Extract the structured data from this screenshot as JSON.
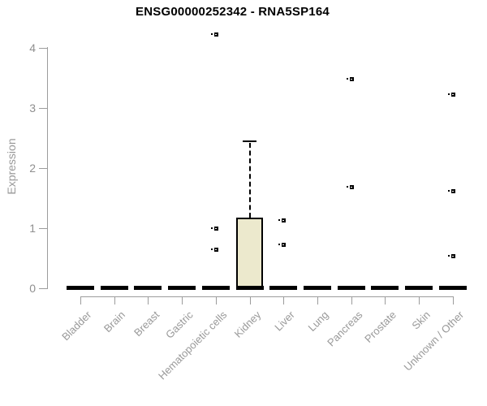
{
  "chart_data": {
    "type": "boxplot",
    "title": "ENSG00000252342 - RNA5SP164",
    "ylabel": "Expression",
    "xlabel": "",
    "ylim": [
      0,
      4
    ],
    "yticks": [
      0,
      1,
      2,
      3,
      4
    ],
    "grid": false,
    "legend": false,
    "categories": [
      "Bladder",
      "Brain",
      "Breast",
      "Gastric",
      "Hematopoietic cells",
      "Kidney",
      "Liver",
      "Lung",
      "Pancreas",
      "Prostate",
      "Skin",
      "Unknown / Other"
    ],
    "boxes": [
      {
        "category": "Bladder",
        "median": 0,
        "q1": 0,
        "q3": 0,
        "whisker_low": 0,
        "whisker_high": 0,
        "outliers": []
      },
      {
        "category": "Brain",
        "median": 0,
        "q1": 0,
        "q3": 0,
        "whisker_low": 0,
        "whisker_high": 0,
        "outliers": []
      },
      {
        "category": "Breast",
        "median": 0,
        "q1": 0,
        "q3": 0,
        "whisker_low": 0,
        "whisker_high": 0,
        "outliers": []
      },
      {
        "category": "Gastric",
        "median": 0,
        "q1": 0,
        "q3": 0,
        "whisker_low": 0,
        "whisker_high": 0,
        "outliers": []
      },
      {
        "category": "Hematopoietic cells",
        "median": 0,
        "q1": 0,
        "q3": 0,
        "whisker_low": 0,
        "whisker_high": 0,
        "outliers": [
          4.21,
          0.98,
          0.64
        ]
      },
      {
        "category": "Kidney",
        "median": 0,
        "q1": 0,
        "q3": 1.17,
        "whisker_low": 0,
        "whisker_high": 2.44,
        "outliers": []
      },
      {
        "category": "Liver",
        "median": 0,
        "q1": 0,
        "q3": 0,
        "whisker_low": 0,
        "whisker_high": 0,
        "outliers": [
          1.12,
          0.71
        ]
      },
      {
        "category": "Lung",
        "median": 0,
        "q1": 0,
        "q3": 0,
        "whisker_low": 0,
        "whisker_high": 0,
        "outliers": []
      },
      {
        "category": "Pancreas",
        "median": 0,
        "q1": 0,
        "q3": 0,
        "whisker_low": 0,
        "whisker_high": 0,
        "outliers": [
          3.47,
          1.67
        ]
      },
      {
        "category": "Prostate",
        "median": 0,
        "q1": 0,
        "q3": 0,
        "whisker_low": 0,
        "whisker_high": 0,
        "outliers": []
      },
      {
        "category": "Skin",
        "median": 0,
        "q1": 0,
        "q3": 0,
        "whisker_low": 0,
        "whisker_high": 0,
        "outliers": []
      },
      {
        "category": "Unknown / Other",
        "median": 0,
        "q1": 0,
        "q3": 0,
        "whisker_low": 0,
        "whisker_high": 0,
        "outliers": [
          3.22,
          1.61,
          0.53
        ]
      }
    ],
    "colors": {
      "box_fill": "#ece9cd",
      "box_border": "#000000",
      "median": "#000000",
      "outlier": "#000000",
      "axis": "#9c9c9c",
      "tick_label": "#8f8f8f",
      "category_label": "#999999",
      "title": "#000000",
      "background": "#ffffff"
    }
  }
}
